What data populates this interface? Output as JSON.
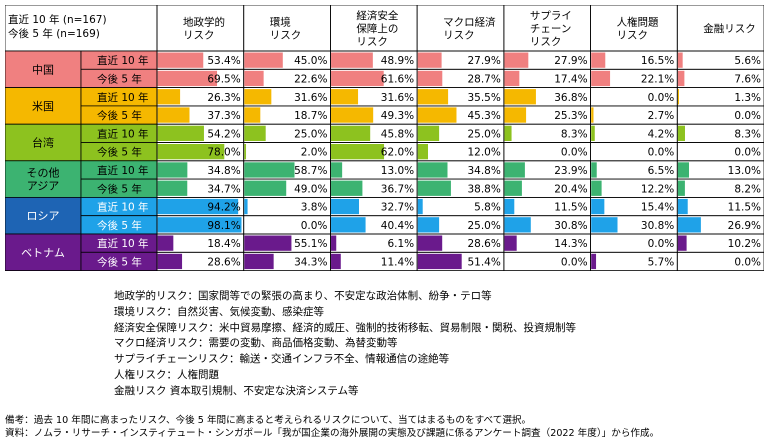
{
  "chart_data": {
    "type": "table",
    "corner_label": [
      "直近 10 年 (n=167)",
      "今後 5 年 (n=169)"
    ],
    "columns": [
      {
        "label": [
          "地政学的",
          "リスク"
        ]
      },
      {
        "label": [
          "環境",
          "リスク"
        ]
      },
      {
        "label": [
          "経済安全",
          "保障上の",
          "リスク"
        ]
      },
      {
        "label": [
          "マクロ経済",
          "リスク"
        ]
      },
      {
        "label": [
          "サプライ",
          "チェーン",
          "リスク"
        ]
      },
      {
        "label": [
          "人権問題",
          "リスク"
        ]
      },
      {
        "label": [
          "金融リスク"
        ]
      }
    ],
    "period_labels": [
      "直近 10 年",
      "今後 5 年"
    ],
    "regions": [
      {
        "name": [
          "中国"
        ],
        "color": "#f08080",
        "rows": [
          [
            53.4,
            45.0,
            48.9,
            27.9,
            27.9,
            16.5,
            5.6
          ],
          [
            69.5,
            22.6,
            61.6,
            28.7,
            17.4,
            22.1,
            7.6
          ]
        ]
      },
      {
        "name": [
          "米国"
        ],
        "color": "#f5b800",
        "rows": [
          [
            26.3,
            31.6,
            31.6,
            35.5,
            36.8,
            0.0,
            1.3
          ],
          [
            37.3,
            18.7,
            49.3,
            45.3,
            25.3,
            2.7,
            0.0
          ]
        ]
      },
      {
        "name": [
          "台湾"
        ],
        "color": "#8dc21f",
        "rows": [
          [
            54.2,
            25.0,
            45.8,
            25.0,
            8.3,
            4.2,
            8.3
          ],
          [
            78.0,
            2.0,
            62.0,
            12.0,
            0.0,
            0.0,
            0.0
          ]
        ]
      },
      {
        "name": [
          "その他",
          "アジア"
        ],
        "color": "#3cb371",
        "rows": [
          [
            34.8,
            58.7,
            13.0,
            34.8,
            23.9,
            6.5,
            13.0
          ],
          [
            34.7,
            49.0,
            36.7,
            38.8,
            20.4,
            12.2,
            8.2
          ]
        ]
      },
      {
        "name": [
          "ロシア"
        ],
        "color": "#1fa2e8",
        "label_bg": "#1e64b4",
        "rows": [
          [
            94.2,
            3.8,
            32.7,
            5.8,
            11.5,
            15.4,
            11.5
          ],
          [
            98.1,
            0.0,
            40.4,
            25.0,
            30.8,
            30.8,
            26.9
          ]
        ]
      },
      {
        "name": [
          "ベトナム"
        ],
        "color": "#6a1a8c",
        "rows": [
          [
            18.4,
            55.1,
            6.1,
            28.6,
            14.3,
            0.0,
            10.2
          ],
          [
            28.6,
            34.3,
            11.4,
            51.4,
            0.0,
            5.7,
            0.0
          ]
        ]
      }
    ]
  },
  "legend_lines": [
    "地政学的リスク：国家間等での緊張の高まり、不安定な政治体制、紛争・テロ等",
    "環境リスク：自然災害、気候変動、感染症等",
    "経済安全保障リスク：米中貿易摩擦、経済的威圧、強制的技術移転、貿易制限・関税、投資規制等",
    "マクロ経済リスク：需要の変動、商品価格変動、為替変動等",
    "サプライチェーンリスク：輸送・交通インフラ不全、情報通信の途絶等",
    "人権リスク：人権問題",
    "金融リスク 資本取引規制、不安定な決済システム等"
  ],
  "notes": {
    "bikou": "備考：過去 10 年間に高まったリスク、今後 5 年間に高まると考えられるリスクについて、当てはまるものをすべて選択。",
    "shiryou": "資料：ノムラ・リサーチ・インスティテュート・シンガポール「我が国企業の海外展開の実態及び課題に係るアンケート調査（2022 年度）」から作成。"
  }
}
